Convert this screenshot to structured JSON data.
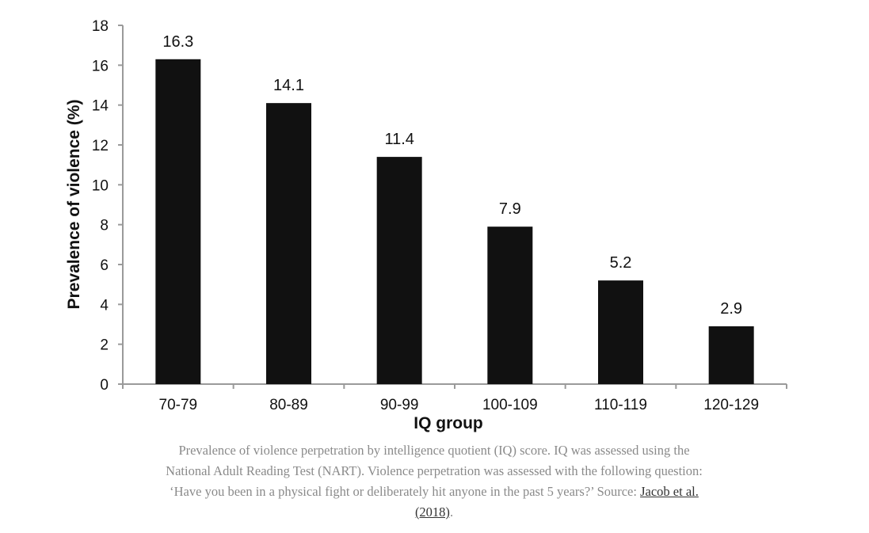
{
  "chart_data": {
    "type": "bar",
    "categories": [
      "70-79",
      "80-89",
      "90-99",
      "100-109",
      "110-119",
      "120-129"
    ],
    "values": [
      16.3,
      14.1,
      11.4,
      7.9,
      5.2,
      2.9
    ],
    "data_labels": [
      "16.3",
      "14.1",
      "11.4",
      "7.9",
      "5.2",
      "2.9"
    ],
    "xlabel": "IQ group",
    "ylabel": "Prevalence of violence (%)",
    "ylim": [
      0,
      18
    ],
    "yticks": [
      "0",
      "2",
      "4",
      "6",
      "8",
      "10",
      "12",
      "14",
      "16",
      "18"
    ],
    "grid": false,
    "bar_color": "#111111"
  },
  "caption": {
    "text": "Prevalence of violence perpetration by intelligence quotient (IQ) score. IQ was assessed using the National Adult Reading Test (NART). Violence perpetration was assessed with the following question: ‘Have you been in a physical fight or deliberately hit anyone in the past 5 years?’ Source: ",
    "link_text": "Jacob et al. (2018)",
    "suffix": "."
  }
}
